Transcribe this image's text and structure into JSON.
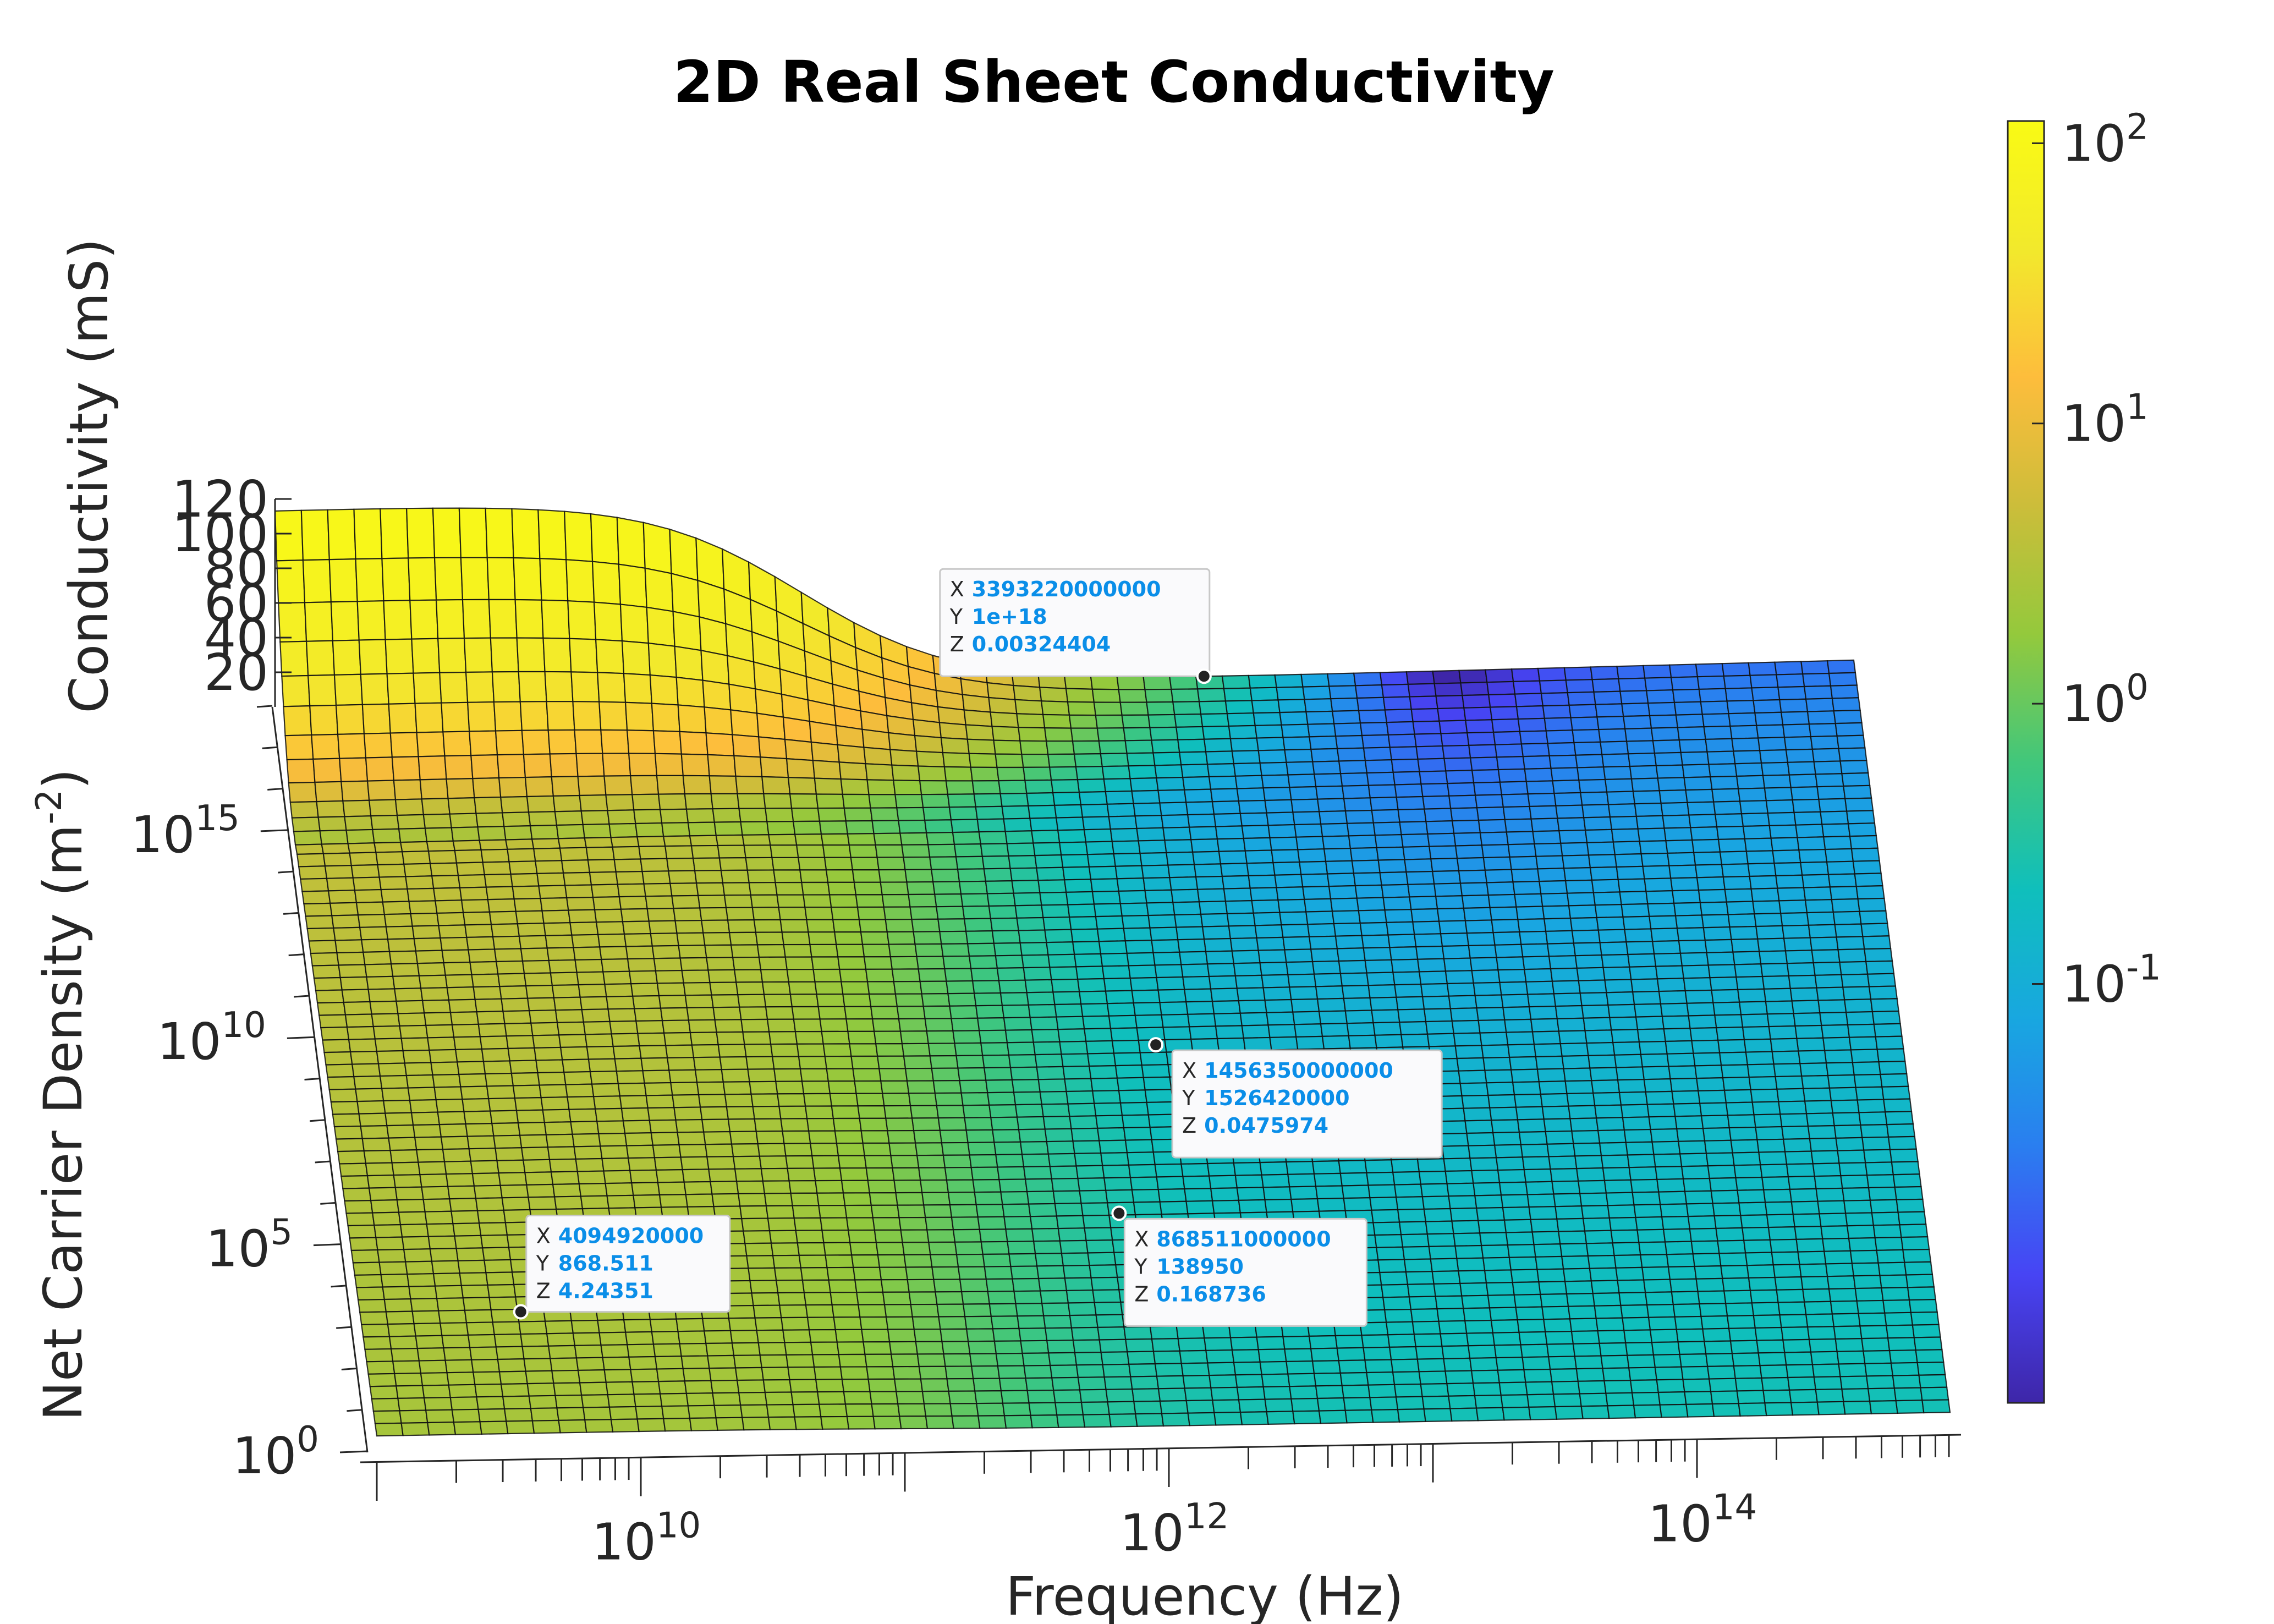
{
  "chart_data": {
    "type": "surface",
    "title": "2D Real Sheet Conductivity",
    "xlabel": "Frequency (Hz)",
    "ylabel": "Net Carrier Density (m",
    "ylabel_exponent": "-2",
    "ylabel_suffix": ")",
    "zlabel": "Conductivity (mS)",
    "x_scale": "log",
    "y_scale": "log",
    "z_scale": "linear",
    "color_scale": "log",
    "x_ticks": [
      {
        "base": "10",
        "exp": "10",
        "value": 10000000000
      },
      {
        "base": "10",
        "exp": "12",
        "value": 1000000000000
      },
      {
        "base": "10",
        "exp": "14",
        "value": 100000000000000
      }
    ],
    "y_ticks": [
      {
        "base": "10",
        "exp": "0",
        "value": 1
      },
      {
        "base": "10",
        "exp": "5",
        "value": 100000
      },
      {
        "base": "10",
        "exp": "10",
        "value": 10000000000
      },
      {
        "base": "10",
        "exp": "15",
        "value": 1000000000000000
      }
    ],
    "z_ticks": [
      "20",
      "40",
      "60",
      "80",
      "100",
      "120"
    ],
    "colorbar_ticks": [
      {
        "base": "10",
        "exp": "2",
        "value": 100
      },
      {
        "base": "10",
        "exp": "1",
        "value": 10
      },
      {
        "base": "10",
        "exp": "0",
        "value": 1
      },
      {
        "base": "10",
        "exp": "-1",
        "value": 0.1
      }
    ],
    "xlim": [
      1000000000,
      1000000000000000
    ],
    "ylim": [
      1,
      1e+18
    ],
    "zlim": [
      0,
      120
    ],
    "grid": false,
    "colormap": "parula",
    "colormap_stops": [
      "#3e26a8",
      "#4744f4",
      "#2a7ef0",
      "#18a7e0",
      "#0fbfbc",
      "#41c77b",
      "#94c93c",
      "#ccbd3a",
      "#fdbd3c",
      "#f2e92c",
      "#f9fa14"
    ],
    "data_tips": [
      {
        "X": "3393220000000",
        "Y": "1e+18",
        "Z": "0.00324404"
      },
      {
        "X": "1456350000000",
        "Y": "1526420000",
        "Z": "0.0475974"
      },
      {
        "X": "868511000000",
        "Y": "138950",
        "Z": "0.168736"
      },
      {
        "X": "4094920000",
        "Y": "868.511",
        "Z": "4.24351"
      }
    ],
    "surface_profile": {
      "conductivity_levels_mS": [
        110,
        65,
        35,
        15,
        4.2,
        2.5
      ],
      "rolloff_frequency_Hz": 100000000000,
      "high_frequency_min_mS": 0.0032
    }
  }
}
